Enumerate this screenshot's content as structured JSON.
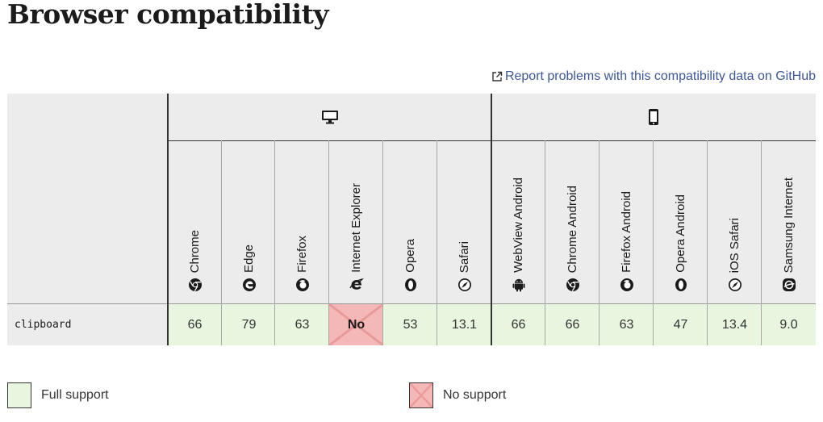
{
  "page": {
    "title": "Browser compatibility",
    "report_link": "Report problems with this compatibility data on GitHub"
  },
  "platforms": {
    "desktop_icon": "desktop-icon",
    "mobile_icon": "mobile-icon"
  },
  "browsers": [
    {
      "name": "Chrome",
      "icon": "chrome-icon"
    },
    {
      "name": "Edge",
      "icon": "edge-icon"
    },
    {
      "name": "Firefox",
      "icon": "firefox-icon"
    },
    {
      "name": "Internet Explorer",
      "icon": "internet-explorer-icon"
    },
    {
      "name": "Opera",
      "icon": "opera-icon"
    },
    {
      "name": "Safari",
      "icon": "safari-icon"
    },
    {
      "name": "WebView Android",
      "icon": "android-icon"
    },
    {
      "name": "Chrome Android",
      "icon": "chrome-icon"
    },
    {
      "name": "Firefox Android",
      "icon": "firefox-icon"
    },
    {
      "name": "Opera Android",
      "icon": "opera-icon"
    },
    {
      "name": "iOS Safari",
      "icon": "safari-icon"
    },
    {
      "name": "Samsung Internet",
      "icon": "samsung-internet-icon"
    }
  ],
  "rows": [
    {
      "feature": "clipboard",
      "values": [
        "66",
        "79",
        "63",
        "No",
        "53",
        "13.1",
        "66",
        "66",
        "63",
        "47",
        "13.4",
        "9.0"
      ]
    }
  ],
  "legend": {
    "full_support": "Full support",
    "no_support": "No support"
  },
  "colors": {
    "full_support_bg": "#e8f6df",
    "no_support_bg": "#f4b8b8",
    "link": "#3d5797"
  }
}
